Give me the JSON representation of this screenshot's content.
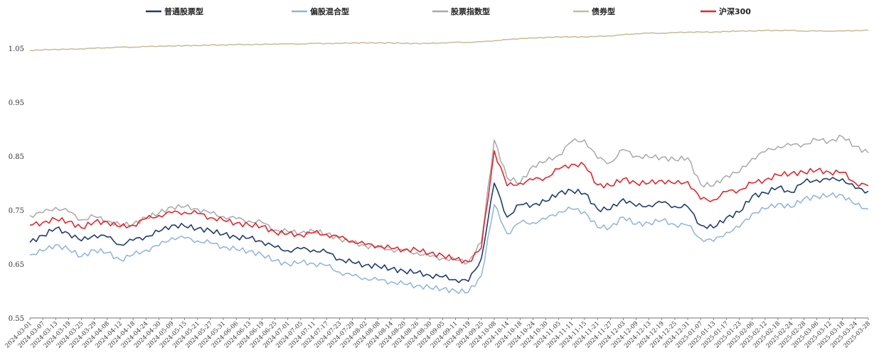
{
  "chart_data": {
    "type": "line",
    "title": "",
    "xlabel": "",
    "ylabel": "",
    "ylim": [
      0.55,
      1.1
    ],
    "yticks": [
      0.55,
      0.65,
      0.75,
      0.85,
      0.95,
      1.05
    ],
    "ytick_labels": [
      "0.55",
      "0.65",
      "0.75",
      "0.85",
      "0.95",
      "1.05"
    ],
    "grid": false,
    "legend_position": "top",
    "x_tick_labels": [
      "2024-03-01",
      "2024-03-07",
      "2024-03-13",
      "2024-03-19",
      "2024-03-25",
      "2024-03-29",
      "2024-04-08",
      "2024-04-12",
      "2024-04-18",
      "2024-04-24",
      "2024-04-30",
      "2024-05-09",
      "2024-05-15",
      "2024-05-21",
      "2024-05-27",
      "2024-05-31",
      "2024-06-06",
      "2024-06-13",
      "2024-06-19",
      "2024-06-25",
      "2024-07-01",
      "2024-07-05",
      "2024-07-11",
      "2024-07-17",
      "2024-07-23",
      "2024-07-29",
      "2024-08-02",
      "2024-08-08",
      "2024-08-14",
      "2024-08-20",
      "2024-08-26",
      "2024-08-30",
      "2024-09-05",
      "2024-09-11",
      "2024-09-19",
      "2024-09-25",
      "2024-10-08",
      "2024-10-14",
      "2024-10-18",
      "2024-10-24",
      "2024-10-30",
      "2024-11-05",
      "2024-11-11",
      "2024-11-15",
      "2024-11-21",
      "2024-11-27",
      "2024-12-03",
      "2024-12-09",
      "2024-12-13",
      "2024-12-19",
      "2024-12-25",
      "2024-12-31",
      "2025-01-07",
      "2025-01-13",
      "2025-01-17",
      "2025-01-23",
      "2025-02-06",
      "2025-02-12",
      "2025-02-18",
      "2025-02-24",
      "2025-02-28",
      "2025-03-06",
      "2025-03-12",
      "2025-03-18",
      "2025-03-24",
      "2025-03-28"
    ],
    "series": [
      {
        "name": "普通股票型",
        "color": "#1f3b70",
        "values": [
          0.69,
          0.703,
          0.716,
          0.707,
          0.693,
          0.704,
          0.7,
          0.686,
          0.694,
          0.701,
          0.71,
          0.722,
          0.72,
          0.716,
          0.712,
          0.705,
          0.7,
          0.698,
          0.692,
          0.681,
          0.675,
          0.678,
          0.676,
          0.672,
          0.659,
          0.653,
          0.648,
          0.646,
          0.641,
          0.637,
          0.634,
          0.629,
          0.626,
          0.621,
          0.618,
          0.66,
          0.8,
          0.737,
          0.76,
          0.76,
          0.766,
          0.782,
          0.786,
          0.781,
          0.752,
          0.751,
          0.771,
          0.757,
          0.759,
          0.764,
          0.757,
          0.756,
          0.722,
          0.717,
          0.736,
          0.746,
          0.776,
          0.782,
          0.792,
          0.783,
          0.802,
          0.806,
          0.806,
          0.808,
          0.79,
          0.785
        ]
      },
      {
        "name": "偏股混合型",
        "color": "#8fb2de",
        "values": [
          0.667,
          0.674,
          0.686,
          0.677,
          0.664,
          0.676,
          0.671,
          0.658,
          0.667,
          0.676,
          0.684,
          0.699,
          0.698,
          0.693,
          0.689,
          0.682,
          0.677,
          0.674,
          0.667,
          0.656,
          0.65,
          0.653,
          0.651,
          0.647,
          0.635,
          0.628,
          0.624,
          0.62,
          0.617,
          0.613,
          0.61,
          0.606,
          0.604,
          0.6,
          0.598,
          0.628,
          0.76,
          0.706,
          0.727,
          0.727,
          0.733,
          0.747,
          0.752,
          0.747,
          0.718,
          0.718,
          0.737,
          0.724,
          0.726,
          0.731,
          0.723,
          0.722,
          0.697,
          0.692,
          0.709,
          0.718,
          0.744,
          0.752,
          0.762,
          0.755,
          0.771,
          0.775,
          0.777,
          0.778,
          0.76,
          0.752
        ]
      },
      {
        "name": "股票指数型",
        "color": "#a8a8a8",
        "values": [
          0.74,
          0.745,
          0.755,
          0.747,
          0.732,
          0.738,
          0.73,
          0.722,
          0.724,
          0.736,
          0.744,
          0.756,
          0.756,
          0.752,
          0.744,
          0.738,
          0.734,
          0.73,
          0.727,
          0.713,
          0.71,
          0.708,
          0.711,
          0.706,
          0.697,
          0.69,
          0.684,
          0.681,
          0.677,
          0.674,
          0.671,
          0.664,
          0.661,
          0.657,
          0.654,
          0.69,
          0.88,
          0.81,
          0.8,
          0.832,
          0.84,
          0.852,
          0.877,
          0.88,
          0.846,
          0.838,
          0.862,
          0.85,
          0.848,
          0.848,
          0.843,
          0.847,
          0.798,
          0.795,
          0.814,
          0.82,
          0.846,
          0.858,
          0.868,
          0.87,
          0.872,
          0.88,
          0.878,
          0.886,
          0.868,
          0.856
        ]
      },
      {
        "name": "债券型",
        "color": "#c6bc94",
        "values": [
          1.046,
          1.047,
          1.048,
          1.048,
          1.049,
          1.05,
          1.051,
          1.052,
          1.052,
          1.053,
          1.054,
          1.054,
          1.055,
          1.055,
          1.056,
          1.056,
          1.057,
          1.057,
          1.057,
          1.058,
          1.058,
          1.058,
          1.059,
          1.059,
          1.059,
          1.06,
          1.06,
          1.06,
          1.06,
          1.059,
          1.059,
          1.059,
          1.06,
          1.061,
          1.061,
          1.062,
          1.064,
          1.066,
          1.068,
          1.069,
          1.07,
          1.071,
          1.071,
          1.071,
          1.072,
          1.073,
          1.075,
          1.077,
          1.078,
          1.078,
          1.079,
          1.08,
          1.08,
          1.08,
          1.081,
          1.082,
          1.082,
          1.083,
          1.083,
          1.083,
          1.082,
          1.082,
          1.082,
          1.082,
          1.083,
          1.083
        ]
      },
      {
        "name": "沪深300",
        "color": "#e8242c",
        "values": [
          0.722,
          0.727,
          0.733,
          0.729,
          0.717,
          0.728,
          0.728,
          0.719,
          0.722,
          0.734,
          0.74,
          0.745,
          0.746,
          0.744,
          0.736,
          0.731,
          0.726,
          0.722,
          0.72,
          0.709,
          0.706,
          0.704,
          0.708,
          0.705,
          0.699,
          0.693,
          0.686,
          0.684,
          0.679,
          0.677,
          0.676,
          0.67,
          0.666,
          0.659,
          0.654,
          0.68,
          0.86,
          0.795,
          0.8,
          0.806,
          0.81,
          0.826,
          0.835,
          0.833,
          0.797,
          0.795,
          0.808,
          0.8,
          0.8,
          0.805,
          0.799,
          0.803,
          0.77,
          0.769,
          0.784,
          0.787,
          0.8,
          0.806,
          0.815,
          0.818,
          0.82,
          0.824,
          0.82,
          0.82,
          0.8,
          0.795
        ]
      }
    ]
  }
}
